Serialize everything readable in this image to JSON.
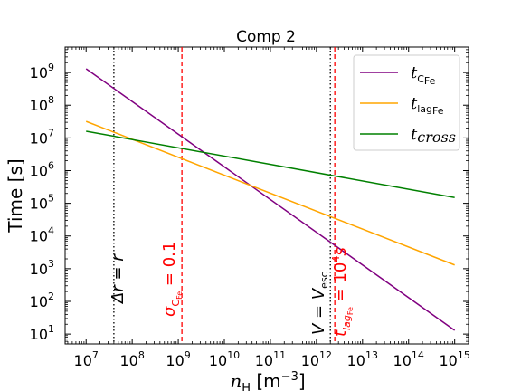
{
  "chart_data": {
    "type": "line",
    "title": "Comp 2",
    "xlabel": "n_H [m^-3]",
    "ylabel": "Time [s]",
    "xscale": "log",
    "yscale": "log",
    "xlim": [
      3500000.0,
      2000000000000000.0
    ],
    "ylim": [
      5,
      6000000000.0
    ],
    "xticks": [
      "10^7",
      "10^8",
      "10^9",
      "10^10",
      "10^11",
      "10^12",
      "10^13",
      "10^14",
      "10^15"
    ],
    "yticks": [
      "10^1",
      "10^2",
      "10^3",
      "10^4",
      "10^5",
      "10^6",
      "10^7",
      "10^8",
      "10^9"
    ],
    "legend_position": "top-right",
    "series": [
      {
        "name": "t_C_Fe",
        "color": "#800080",
        "x": [
          10000000.0,
          1000000000000000.0
        ],
        "y": [
          1300000000.0,
          13
        ]
      },
      {
        "name": "t_lag_Fe",
        "color": "#FFA500",
        "x": [
          10000000.0,
          1000000000000000.0
        ],
        "y": [
          32000000.0,
          1300
        ]
      },
      {
        "name": "t_cross",
        "color": "#008000",
        "x": [
          10000000.0,
          1000000000000000.0
        ],
        "y": [
          16000000.0,
          150000.0
        ]
      }
    ],
    "vlines": [
      {
        "x": 40000000.0,
        "style": "dotted",
        "color": "#000000",
        "label": "Δr = r"
      },
      {
        "x": 1200000000.0,
        "style": "dashed",
        "color": "#FF0000",
        "label": "σ_C_Fe = 0.1"
      },
      {
        "x": 2000000000000.0,
        "style": "dotted",
        "color": "#000000",
        "label": "V = V_esc"
      },
      {
        "x": 2500000000000.0,
        "style": "dashed",
        "color": "#FF0000",
        "label": "t_lag_Fe = 10^4 s"
      }
    ]
  }
}
